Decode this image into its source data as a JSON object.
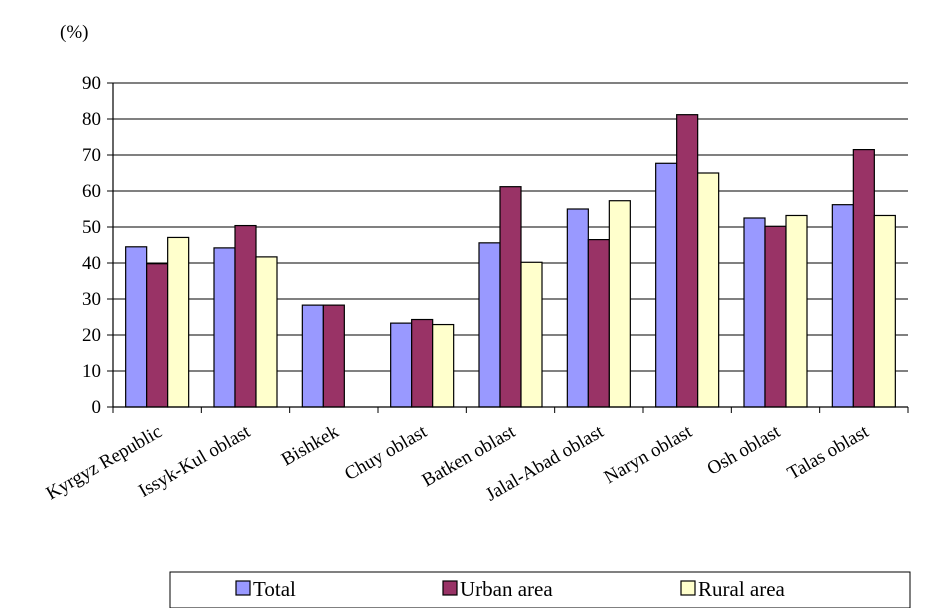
{
  "chart_data": {
    "type": "bar",
    "unit_label": "(%)",
    "ylim": [
      0,
      90
    ],
    "y_ticks": [
      0,
      10,
      20,
      30,
      40,
      50,
      60,
      70,
      80,
      90
    ],
    "grid": true,
    "legend_position": "bottom",
    "categories": [
      "Kyrgyz Republic",
      "Issyk-Kul oblast",
      "Bishkek",
      "Chuy oblast",
      "Batken oblast",
      "Jalal-Abad oblast",
      "Naryn oblast",
      "Osh oblast",
      "Talas oblast"
    ],
    "series": [
      {
        "name": "Total",
        "color": "#9999ff",
        "values": [
          44.5,
          44.2,
          28.3,
          23.3,
          45.6,
          55.0,
          67.7,
          52.5,
          56.2
        ]
      },
      {
        "name": "Urban area",
        "color": "#993366",
        "values": [
          39.8,
          50.4,
          28.3,
          24.3,
          61.2,
          46.5,
          81.2,
          50.2,
          71.5
        ]
      },
      {
        "name": "Rural area",
        "color": "#ffffcc",
        "values": [
          47.1,
          41.7,
          null,
          22.9,
          40.2,
          57.3,
          65.0,
          53.2,
          53.2
        ]
      }
    ]
  }
}
